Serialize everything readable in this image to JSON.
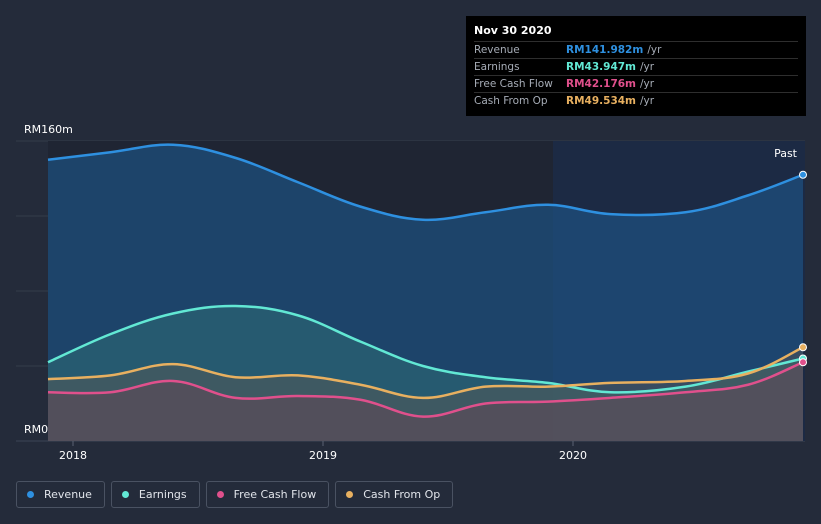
{
  "tooltip": {
    "date": "Nov 30 2020",
    "rows": [
      {
        "label": "Revenue",
        "value": "RM141.982m",
        "unit": "/yr",
        "color": "#2e90e0"
      },
      {
        "label": "Earnings",
        "value": "RM43.947m",
        "unit": "/yr",
        "color": "#62e8d4"
      },
      {
        "label": "Free Cash Flow",
        "value": "RM42.176m",
        "unit": "/yr",
        "color": "#e0508c"
      },
      {
        "label": "Cash From Op",
        "value": "RM49.534m",
        "unit": "/yr",
        "color": "#e8b060"
      }
    ]
  },
  "legend": [
    {
      "label": "Revenue",
      "color": "#2e90e0"
    },
    {
      "label": "Earnings",
      "color": "#62e8d4"
    },
    {
      "label": "Free Cash Flow",
      "color": "#e0508c"
    },
    {
      "label": "Cash From Op",
      "color": "#e8b060"
    }
  ],
  "chart_data": {
    "type": "area",
    "ylabel_top": "RM160m",
    "ylabel_bottom": "RM0",
    "past_label": "Past",
    "ylim": [
      0,
      160
    ],
    "xlim": [
      2017.9,
      2020.92
    ],
    "x_ticks": [
      {
        "label": "2018",
        "value": 2018.0
      },
      {
        "label": "2019",
        "value": 2019.0
      },
      {
        "label": "2020",
        "value": 2020.0
      }
    ],
    "past_region_start": 2019.92,
    "series": [
      {
        "name": "Revenue",
        "color": "#2e90e0",
        "x": [
          2017.9,
          2018.15,
          2018.4,
          2018.65,
          2018.9,
          2019.15,
          2019.4,
          2019.65,
          2019.9,
          2020.15,
          2020.45,
          2020.7,
          2020.92
        ],
        "values": [
          150,
          154,
          158,
          151,
          138,
          125,
          118,
          122,
          126,
          121,
          122,
          131,
          142
        ]
      },
      {
        "name": "Earnings",
        "color": "#62e8d4",
        "x": [
          2017.9,
          2018.15,
          2018.4,
          2018.65,
          2018.9,
          2019.15,
          2019.4,
          2019.65,
          2019.9,
          2020.15,
          2020.45,
          2020.7,
          2020.92
        ],
        "values": [
          42,
          57,
          68,
          72,
          67,
          53,
          40,
          34,
          31,
          26,
          29,
          37,
          44
        ]
      },
      {
        "name": "Free Cash Flow",
        "color": "#e0508c",
        "x": [
          2017.9,
          2018.15,
          2018.4,
          2018.65,
          2018.9,
          2019.15,
          2019.4,
          2019.65,
          2019.9,
          2020.15,
          2020.45,
          2020.7,
          2020.92
        ],
        "values": [
          26,
          26,
          32,
          23,
          24,
          22,
          13,
          20,
          21,
          23,
          26,
          30,
          42
        ]
      },
      {
        "name": "Cash From Op",
        "color": "#e8b060",
        "x": [
          2017.9,
          2018.15,
          2018.4,
          2018.65,
          2018.9,
          2019.15,
          2019.4,
          2019.65,
          2019.9,
          2020.15,
          2020.45,
          2020.7,
          2020.92
        ],
        "values": [
          33,
          35,
          41,
          34,
          35,
          30,
          23,
          29,
          29,
          31,
          32,
          36,
          50
        ]
      }
    ]
  }
}
